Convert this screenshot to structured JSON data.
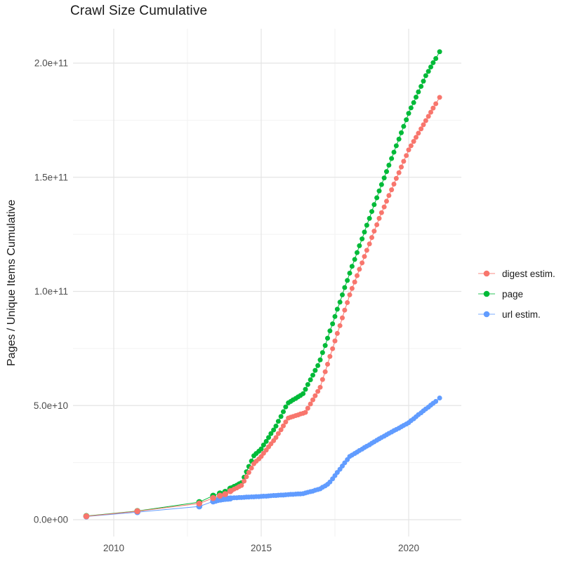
{
  "chart_data": {
    "type": "scatter",
    "connected": true,
    "title": "Crawl Size Cumulative",
    "xlabel": "",
    "ylabel": "Pages / Unique Items Cumulative",
    "grid": true,
    "legend_position": "right",
    "value_scale": 10000000000.0,
    "xlim": [
      2008.6,
      2021.8
    ],
    "ylim_display": [
      "0.0e+00",
      "2.0e+11"
    ],
    "x_ticks": [
      {
        "label": "2010",
        "value": 2010
      },
      {
        "label": "2015",
        "value": 2015
      },
      {
        "label": "2020",
        "value": 2020
      }
    ],
    "x_minor": [
      2012.5,
      2017.5
    ],
    "y_ticks": [
      {
        "label": "0.0e+00",
        "value": 0
      },
      {
        "label": "5.0e+10",
        "value": 5
      },
      {
        "label": "1.0e+11",
        "value": 10
      },
      {
        "label": "1.5e+11",
        "value": 15
      },
      {
        "label": "2.0e+11",
        "value": 20
      }
    ],
    "y_minor": [
      2.5,
      7.5,
      12.5,
      17.5
    ],
    "series": [
      {
        "name": "digest estim.",
        "color": "#F8766D",
        "points": [
          [
            2009.07,
            0.15
          ],
          [
            2010.8,
            0.37
          ],
          [
            2012.9,
            0.71
          ],
          [
            2013.37,
            0.95
          ],
          [
            2013.6,
            1.05
          ],
          [
            2013.78,
            1.12
          ],
          [
            2013.95,
            1.25
          ],
          [
            2014,
            1.28
          ],
          [
            2014.08,
            1.34
          ],
          [
            2014.17,
            1.39
          ],
          [
            2014.25,
            1.45
          ],
          [
            2014.33,
            1.5
          ],
          [
            2014.42,
            1.69
          ],
          [
            2014.5,
            1.88
          ],
          [
            2014.58,
            2.07
          ],
          [
            2014.67,
            2.26
          ],
          [
            2014.75,
            2.45
          ],
          [
            2014.83,
            2.56
          ],
          [
            2014.92,
            2.66
          ],
          [
            2015,
            2.77
          ],
          [
            2015.08,
            2.91
          ],
          [
            2015.17,
            3.05
          ],
          [
            2015.25,
            3.19
          ],
          [
            2015.33,
            3.32
          ],
          [
            2015.42,
            3.46
          ],
          [
            2015.5,
            3.6
          ],
          [
            2015.58,
            3.77
          ],
          [
            2015.67,
            3.94
          ],
          [
            2015.75,
            4.11
          ],
          [
            2015.83,
            4.28
          ],
          [
            2015.92,
            4.45
          ],
          [
            2016,
            4.49
          ],
          [
            2016.08,
            4.52
          ],
          [
            2016.17,
            4.56
          ],
          [
            2016.25,
            4.59
          ],
          [
            2016.33,
            4.63
          ],
          [
            2016.42,
            4.66
          ],
          [
            2016.5,
            4.7
          ],
          [
            2016.58,
            4.88
          ],
          [
            2016.67,
            5.07
          ],
          [
            2016.75,
            5.25
          ],
          [
            2016.83,
            5.43
          ],
          [
            2016.92,
            5.62
          ],
          [
            2017,
            5.8
          ],
          [
            2017.08,
            6.14
          ],
          [
            2017.17,
            6.48
          ],
          [
            2017.25,
            6.81
          ],
          [
            2017.33,
            7.15
          ],
          [
            2017.42,
            7.49
          ],
          [
            2017.5,
            7.83
          ],
          [
            2017.58,
            8.16
          ],
          [
            2017.67,
            8.5
          ],
          [
            2017.75,
            8.84
          ],
          [
            2017.83,
            9.18
          ],
          [
            2017.92,
            9.51
          ],
          [
            2018,
            9.85
          ],
          [
            2018.08,
            10.13
          ],
          [
            2018.17,
            10.41
          ],
          [
            2018.25,
            10.69
          ],
          [
            2018.33,
            10.97
          ],
          [
            2018.42,
            11.25
          ],
          [
            2018.5,
            11.53
          ],
          [
            2018.58,
            11.8
          ],
          [
            2018.67,
            12.08
          ],
          [
            2018.75,
            12.36
          ],
          [
            2018.83,
            12.64
          ],
          [
            2018.92,
            12.92
          ],
          [
            2019,
            13.2
          ],
          [
            2019.08,
            13.45
          ],
          [
            2019.17,
            13.7
          ],
          [
            2019.25,
            13.95
          ],
          [
            2019.33,
            14.2
          ],
          [
            2019.42,
            14.45
          ],
          [
            2019.5,
            14.7
          ],
          [
            2019.58,
            14.95
          ],
          [
            2019.67,
            15.2
          ],
          [
            2019.75,
            15.45
          ],
          [
            2019.83,
            15.7
          ],
          [
            2019.92,
            15.95
          ],
          [
            2020,
            16.2
          ],
          [
            2020.08,
            16.38
          ],
          [
            2020.17,
            16.57
          ],
          [
            2020.25,
            16.75
          ],
          [
            2020.33,
            16.93
          ],
          [
            2020.42,
            17.12
          ],
          [
            2020.5,
            17.3
          ],
          [
            2020.58,
            17.48
          ],
          [
            2020.67,
            17.67
          ],
          [
            2020.75,
            17.85
          ],
          [
            2020.83,
            18.03
          ],
          [
            2020.92,
            18.22
          ],
          [
            2021.05,
            18.5
          ]
        ]
      },
      {
        "name": "page",
        "color": "#00BA38",
        "points": [
          [
            2009.07,
            0.16
          ],
          [
            2010.8,
            0.38
          ],
          [
            2012.9,
            0.77
          ],
          [
            2013.37,
            1.05
          ],
          [
            2013.6,
            1.15
          ],
          [
            2013.78,
            1.22
          ],
          [
            2013.95,
            1.36
          ],
          [
            2014,
            1.4
          ],
          [
            2014.08,
            1.46
          ],
          [
            2014.17,
            1.51
          ],
          [
            2014.25,
            1.57
          ],
          [
            2014.33,
            1.62
          ],
          [
            2014.42,
            1.86
          ],
          [
            2014.5,
            2.1
          ],
          [
            2014.58,
            2.33
          ],
          [
            2014.67,
            2.57
          ],
          [
            2014.75,
            2.8
          ],
          [
            2014.83,
            2.9
          ],
          [
            2014.92,
            3
          ],
          [
            2015,
            3.1
          ],
          [
            2015.08,
            3.27
          ],
          [
            2015.17,
            3.43
          ],
          [
            2015.25,
            3.6
          ],
          [
            2015.33,
            3.77
          ],
          [
            2015.42,
            3.93
          ],
          [
            2015.5,
            4.1
          ],
          [
            2015.58,
            4.31
          ],
          [
            2015.67,
            4.52
          ],
          [
            2015.75,
            4.73
          ],
          [
            2015.83,
            4.94
          ],
          [
            2015.92,
            5.12
          ],
          [
            2016,
            5.18
          ],
          [
            2016.08,
            5.25
          ],
          [
            2016.17,
            5.31
          ],
          [
            2016.25,
            5.38
          ],
          [
            2016.33,
            5.44
          ],
          [
            2016.42,
            5.52
          ],
          [
            2016.5,
            5.71
          ],
          [
            2016.58,
            5.92
          ],
          [
            2016.67,
            6.13
          ],
          [
            2016.75,
            6.33
          ],
          [
            2016.83,
            6.54
          ],
          [
            2016.92,
            6.75
          ],
          [
            2017,
            7
          ],
          [
            2017.08,
            7.32
          ],
          [
            2017.17,
            7.63
          ],
          [
            2017.25,
            7.95
          ],
          [
            2017.33,
            8.27
          ],
          [
            2017.42,
            8.58
          ],
          [
            2017.5,
            8.9
          ],
          [
            2017.58,
            9.22
          ],
          [
            2017.67,
            9.53
          ],
          [
            2017.75,
            9.85
          ],
          [
            2017.83,
            10.17
          ],
          [
            2017.92,
            10.48
          ],
          [
            2018,
            10.8
          ],
          [
            2018.08,
            11.1
          ],
          [
            2018.17,
            11.4
          ],
          [
            2018.25,
            11.7
          ],
          [
            2018.33,
            12
          ],
          [
            2018.42,
            12.3
          ],
          [
            2018.5,
            12.6
          ],
          [
            2018.58,
            12.9
          ],
          [
            2018.67,
            13.2
          ],
          [
            2018.75,
            13.5
          ],
          [
            2018.83,
            13.8
          ],
          [
            2018.92,
            14.1
          ],
          [
            2019,
            14.4
          ],
          [
            2019.08,
            14.68
          ],
          [
            2019.17,
            14.97
          ],
          [
            2019.25,
            15.25
          ],
          [
            2019.33,
            15.53
          ],
          [
            2019.42,
            15.82
          ],
          [
            2019.5,
            16.1
          ],
          [
            2019.58,
            16.38
          ],
          [
            2019.67,
            16.67
          ],
          [
            2019.75,
            16.95
          ],
          [
            2019.83,
            17.23
          ],
          [
            2019.92,
            17.52
          ],
          [
            2020,
            17.8
          ],
          [
            2020.08,
            18.04
          ],
          [
            2020.17,
            18.27
          ],
          [
            2020.25,
            18.51
          ],
          [
            2020.33,
            18.74
          ],
          [
            2020.42,
            18.98
          ],
          [
            2020.5,
            19.21
          ],
          [
            2020.58,
            19.45
          ],
          [
            2020.67,
            19.64
          ],
          [
            2020.75,
            19.83
          ],
          [
            2020.83,
            20.02
          ],
          [
            2020.92,
            20.2
          ],
          [
            2021.05,
            20.5
          ]
        ]
      },
      {
        "name": "url estim.",
        "color": "#619CFF",
        "points": [
          [
            2009.07,
            0.14
          ],
          [
            2010.8,
            0.33
          ],
          [
            2012.9,
            0.58
          ],
          [
            2013.37,
            0.8
          ],
          [
            2013.45,
            0.83
          ],
          [
            2013.53,
            0.86
          ],
          [
            2013.62,
            0.88
          ],
          [
            2013.7,
            0.9
          ],
          [
            2013.78,
            0.91
          ],
          [
            2013.87,
            0.92
          ],
          [
            2013.95,
            0.93
          ],
          [
            2014,
            0.95
          ],
          [
            2014.08,
            0.96
          ],
          [
            2014.17,
            0.96
          ],
          [
            2014.25,
            0.97
          ],
          [
            2014.33,
            0.97
          ],
          [
            2014.42,
            0.98
          ],
          [
            2014.5,
            0.99
          ],
          [
            2014.58,
            0.99
          ],
          [
            2014.67,
            1
          ],
          [
            2014.75,
            1
          ],
          [
            2014.83,
            1.01
          ],
          [
            2014.92,
            1.01
          ],
          [
            2015,
            1.02
          ],
          [
            2015.08,
            1.03
          ],
          [
            2015.17,
            1.03
          ],
          [
            2015.25,
            1.04
          ],
          [
            2015.33,
            1.05
          ],
          [
            2015.42,
            1.06
          ],
          [
            2015.5,
            1.06
          ],
          [
            2015.58,
            1.07
          ],
          [
            2015.67,
            1.08
          ],
          [
            2015.75,
            1.08
          ],
          [
            2015.83,
            1.09
          ],
          [
            2015.92,
            1.1
          ],
          [
            2016,
            1.11
          ],
          [
            2016.08,
            1.11
          ],
          [
            2016.17,
            1.12
          ],
          [
            2016.25,
            1.13
          ],
          [
            2016.33,
            1.13
          ],
          [
            2016.42,
            1.14
          ],
          [
            2016.5,
            1.17
          ],
          [
            2016.58,
            1.2
          ],
          [
            2016.67,
            1.23
          ],
          [
            2016.75,
            1.25
          ],
          [
            2016.83,
            1.29
          ],
          [
            2016.92,
            1.32
          ],
          [
            2017,
            1.35
          ],
          [
            2017.08,
            1.42
          ],
          [
            2017.17,
            1.48
          ],
          [
            2017.25,
            1.55
          ],
          [
            2017.33,
            1.65
          ],
          [
            2017.42,
            1.79
          ],
          [
            2017.5,
            1.93
          ],
          [
            2017.58,
            2.07
          ],
          [
            2017.67,
            2.21
          ],
          [
            2017.75,
            2.35
          ],
          [
            2017.83,
            2.49
          ],
          [
            2017.92,
            2.63
          ],
          [
            2018,
            2.77
          ],
          [
            2018.08,
            2.83
          ],
          [
            2018.17,
            2.9
          ],
          [
            2018.25,
            2.96
          ],
          [
            2018.33,
            3.03
          ],
          [
            2018.42,
            3.09
          ],
          [
            2018.5,
            3.16
          ],
          [
            2018.58,
            3.22
          ],
          [
            2018.67,
            3.28
          ],
          [
            2018.75,
            3.35
          ],
          [
            2018.83,
            3.41
          ],
          [
            2018.92,
            3.48
          ],
          [
            2019,
            3.54
          ],
          [
            2019.08,
            3.6
          ],
          [
            2019.17,
            3.66
          ],
          [
            2019.25,
            3.72
          ],
          [
            2019.33,
            3.78
          ],
          [
            2019.42,
            3.84
          ],
          [
            2019.5,
            3.9
          ],
          [
            2019.58,
            3.95
          ],
          [
            2019.67,
            4.01
          ],
          [
            2019.75,
            4.07
          ],
          [
            2019.83,
            4.13
          ],
          [
            2019.92,
            4.19
          ],
          [
            2020,
            4.25
          ],
          [
            2020.08,
            4.34
          ],
          [
            2020.17,
            4.42
          ],
          [
            2020.25,
            4.51
          ],
          [
            2020.33,
            4.6
          ],
          [
            2020.42,
            4.68
          ],
          [
            2020.5,
            4.77
          ],
          [
            2020.58,
            4.85
          ],
          [
            2020.67,
            4.93
          ],
          [
            2020.75,
            5.02
          ],
          [
            2020.83,
            5.1
          ],
          [
            2020.92,
            5.18
          ],
          [
            2021.05,
            5.33
          ]
        ]
      }
    ]
  }
}
